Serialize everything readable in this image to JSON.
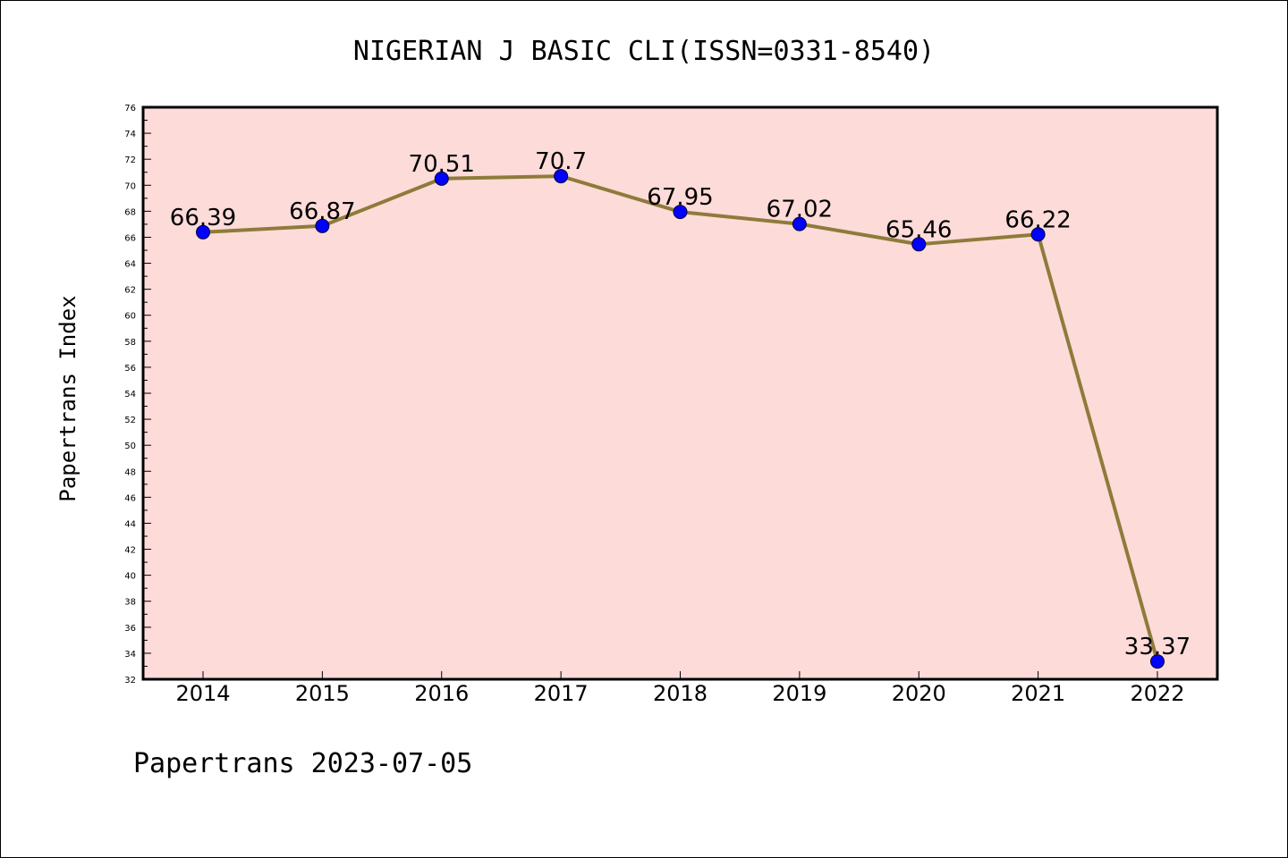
{
  "chart_data": {
    "type": "line",
    "title": "NIGERIAN J BASIC CLI(ISSN=0331-8540)",
    "xlabel": "",
    "ylabel": "Papertrans Index",
    "footer": "Papertrans 2023-07-05",
    "categories": [
      "2014",
      "2015",
      "2016",
      "2017",
      "2018",
      "2019",
      "2020",
      "2021",
      "2022"
    ],
    "values": [
      66.39,
      66.87,
      70.51,
      70.7,
      67.95,
      67.02,
      65.46,
      66.22,
      33.37
    ],
    "data_labels": [
      "66.39",
      "66.87",
      "70.51",
      "70.7",
      "67.95",
      "67.02",
      "65.46",
      "66.22",
      "33.37"
    ],
    "ylim": [
      32,
      76
    ],
    "yticks": [
      32,
      34,
      36,
      38,
      40,
      42,
      44,
      46,
      48,
      50,
      52,
      54,
      56,
      58,
      60,
      62,
      64,
      66,
      68,
      70,
      72,
      74,
      76
    ],
    "grid": false,
    "colors": {
      "plot_background": "#fddbd9",
      "line": "#8e7b3a",
      "marker": "#0000ff",
      "axes": "#000000"
    }
  }
}
